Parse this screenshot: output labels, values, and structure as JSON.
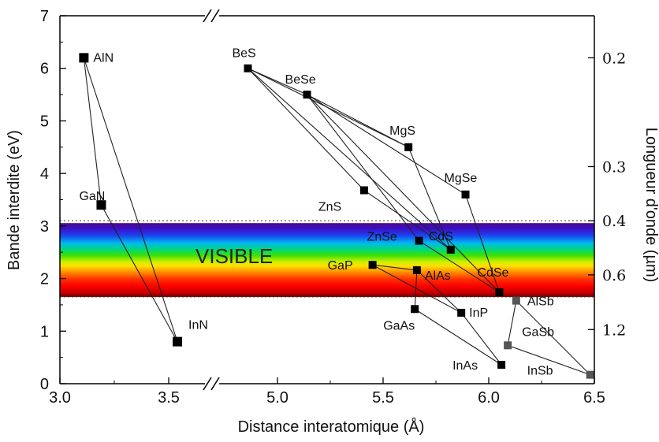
{
  "chart_data": {
    "type": "scatter",
    "xlabel": "Distance interatomique (Å)",
    "ylabel": "Bande interdite (eV)",
    "y2label": "Longueur d'onde (µm)",
    "x_ticks": [
      "3.0",
      "3.5",
      "5.0",
      "5.5",
      "6.0",
      "6.5"
    ],
    "x_break_after": "3.5",
    "y_ticks": [
      "0",
      "1",
      "2",
      "3",
      "4",
      "5",
      "6",
      "7"
    ],
    "ylim": [
      0,
      7
    ],
    "y2_ticks": [
      {
        "label": "0.2",
        "energy": 6.2
      },
      {
        "label": "0.3",
        "energy": 4.13
      },
      {
        "label": "0.4",
        "energy": 3.1
      },
      {
        "label": "0.6",
        "energy": 2.07
      },
      {
        "label": "1.2",
        "energy": 1.03
      }
    ],
    "visible_band": {
      "label": "VISIBLE",
      "range_eV": [
        1.65,
        3.1
      ]
    },
    "points": [
      {
        "name": "AlN",
        "label": "AlN",
        "x": 3.11,
        "y": 6.2,
        "color": "#000000"
      },
      {
        "name": "GaN",
        "label": "GaN",
        "x": 3.19,
        "y": 3.4,
        "color": "#000000"
      },
      {
        "name": "InN",
        "label": "InN",
        "x": 3.54,
        "y": 0.8,
        "color": "#000000"
      },
      {
        "name": "BeS",
        "label": "BeS",
        "x": 4.86,
        "y": 6.0,
        "color": "#000000"
      },
      {
        "name": "BeSe",
        "label": "BeSe",
        "x": 5.14,
        "y": 5.5,
        "color": "#000000"
      },
      {
        "name": "MgS",
        "label": "MgS",
        "x": 5.62,
        "y": 4.5,
        "color": "#000000"
      },
      {
        "name": "MgSe",
        "label": "MgSe",
        "x": 5.89,
        "y": 3.6,
        "color": "#000000"
      },
      {
        "name": "ZnS",
        "label": "ZnS",
        "x": 5.41,
        "y": 3.68,
        "color": "#000000"
      },
      {
        "name": "CdS",
        "label": "CdS",
        "x": 5.82,
        "y": 2.55,
        "color": "#000000"
      },
      {
        "name": "ZnSe",
        "label": "ZnSe",
        "x": 5.67,
        "y": 2.72,
        "color": "#000000"
      },
      {
        "name": "CdSe",
        "label": "CdSe",
        "x": 6.05,
        "y": 1.74,
        "color": "#000000"
      },
      {
        "name": "GaP",
        "label": "GaP",
        "x": 5.45,
        "y": 2.26,
        "color": "#000000"
      },
      {
        "name": "AlAs",
        "label": "AlAs",
        "x": 5.66,
        "y": 2.16,
        "color": "#000000"
      },
      {
        "name": "GaAs",
        "label": "GaAs",
        "x": 5.65,
        "y": 1.42,
        "color": "#000000"
      },
      {
        "name": "InP",
        "label": "InP",
        "x": 5.87,
        "y": 1.35,
        "color": "#000000"
      },
      {
        "name": "InAs",
        "label": "InAs",
        "x": 6.06,
        "y": 0.36,
        "color": "#000000"
      },
      {
        "name": "AlSb",
        "label": "AlSb",
        "x": 6.13,
        "y": 1.58,
        "color": "#555555"
      },
      {
        "name": "GaSb",
        "label": "GaSb",
        "x": 6.09,
        "y": 0.73,
        "color": "#555555"
      },
      {
        "name": "InSb",
        "label": "InSb",
        "x": 6.48,
        "y": 0.17,
        "color": "#555555"
      }
    ],
    "connections": [
      [
        "AlN",
        "GaN"
      ],
      [
        "AlN",
        "InN"
      ],
      [
        "GaN",
        "InN"
      ],
      [
        "BeS",
        "BeSe"
      ],
      [
        "BeS",
        "MgS"
      ],
      [
        "BeS",
        "ZnS"
      ],
      [
        "BeS",
        "CdS"
      ],
      [
        "BeSe",
        "MgSe"
      ],
      [
        "BeSe",
        "MgS"
      ],
      [
        "BeSe",
        "ZnSe"
      ],
      [
        "BeSe",
        "CdSe"
      ],
      [
        "MgS",
        "CdS"
      ],
      [
        "MgSe",
        "CdSe"
      ],
      [
        "ZnS",
        "CdS"
      ],
      [
        "ZnSe",
        "CdSe"
      ],
      [
        "GaP",
        "AlAs"
      ],
      [
        "GaP",
        "InP"
      ],
      [
        "AlAs",
        "GaAs"
      ],
      [
        "AlAs",
        "InP"
      ],
      [
        "GaAs",
        "InAs"
      ],
      [
        "InP",
        "InAs"
      ],
      [
        "AlSb",
        "GaSb"
      ],
      [
        "AlSb",
        "InSb"
      ],
      [
        "GaSb",
        "InSb"
      ]
    ]
  }
}
